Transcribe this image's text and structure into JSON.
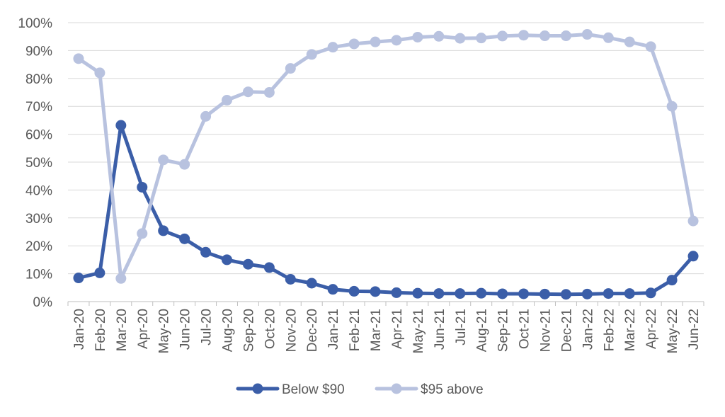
{
  "chart_data": {
    "type": "line",
    "title": "",
    "xlabel": "",
    "ylabel": "",
    "ylim": [
      0,
      1
    ],
    "y_ticks": [
      "0%",
      "10%",
      "20%",
      "30%",
      "40%",
      "50%",
      "60%",
      "70%",
      "80%",
      "90%",
      "100%"
    ],
    "grid": true,
    "legend_position": "bottom",
    "categories": [
      "Jan-20",
      "Feb-20",
      "Mar-20",
      "Apr-20",
      "May-20",
      "Jun-20",
      "Jul-20",
      "Aug-20",
      "Sep-20",
      "Oct-20",
      "Nov-20",
      "Dec-20",
      "Jan-21",
      "Feb-21",
      "Mar-21",
      "Apr-21",
      "May-21",
      "Jun-21",
      "Jul-21",
      "Aug-21",
      "Sep-21",
      "Oct-21",
      "Nov-21",
      "Dec-21",
      "Jan-22",
      "Feb-22",
      "Mar-22",
      "Apr-22",
      "May-22",
      "Jun-22"
    ],
    "series": [
      {
        "name": "Below $90",
        "color": "#3b5ea8",
        "values": [
          0.085,
          0.103,
          0.632,
          0.41,
          0.254,
          0.225,
          0.177,
          0.15,
          0.134,
          0.122,
          0.08,
          0.066,
          0.044,
          0.037,
          0.036,
          0.032,
          0.03,
          0.029,
          0.029,
          0.03,
          0.028,
          0.028,
          0.027,
          0.026,
          0.027,
          0.029,
          0.029,
          0.031,
          0.077,
          0.163
        ]
      },
      {
        "name": "$95 above",
        "color": "#b8c2df",
        "values": [
          0.871,
          0.82,
          0.083,
          0.244,
          0.508,
          0.492,
          0.664,
          0.722,
          0.752,
          0.75,
          0.836,
          0.886,
          0.912,
          0.924,
          0.931,
          0.937,
          0.948,
          0.951,
          0.944,
          0.945,
          0.952,
          0.955,
          0.953,
          0.953,
          0.958,
          0.946,
          0.931,
          0.914,
          0.7,
          0.289
        ]
      }
    ]
  }
}
